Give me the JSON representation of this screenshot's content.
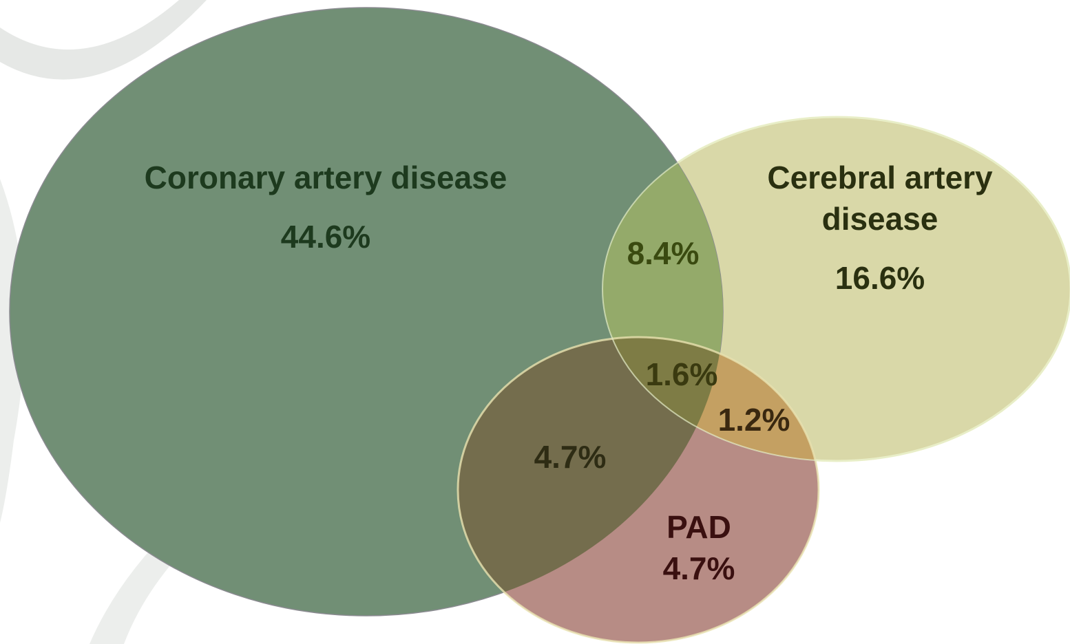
{
  "sets": [
    {
      "label": [
        "Coronary artery disease"
      ],
      "value": "44.6%"
    },
    {
      "label": [
        "Cerebral artery",
        "disease"
      ],
      "value": "16.6%"
    },
    {
      "label": [
        "PAD"
      ],
      "value": "4.7%"
    }
  ],
  "overlaps": [
    "8.4%",
    "1.6%",
    "1.2%",
    "4.7%"
  ]
}
